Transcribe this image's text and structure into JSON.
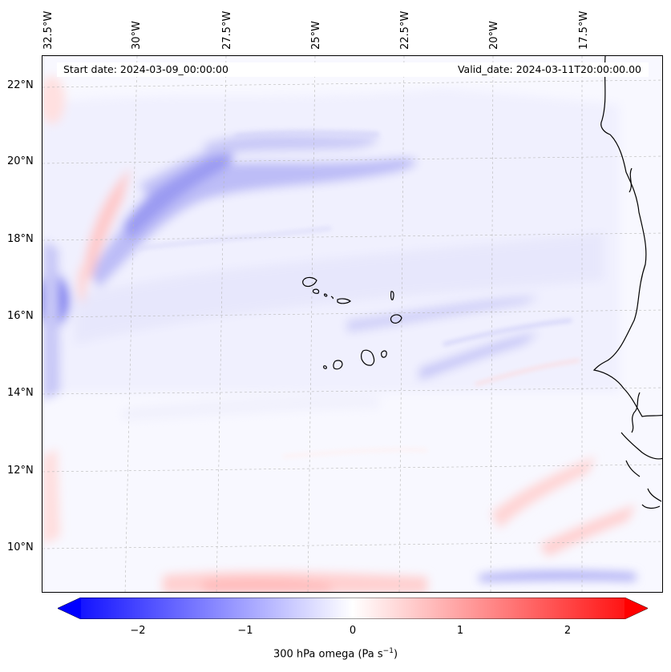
{
  "figure": {
    "start_date_label": "Start date: 2024-03-09_00:00:00",
    "valid_date_label": "Valid_date: 2024-03-11T20:00:00.00",
    "longitude_labels": [
      "32.5°W",
      "30°W",
      "27.5°W",
      "25°W",
      "22.5°W",
      "20°W",
      "17.5°W"
    ],
    "latitude_labels": [
      "22°N",
      "20°N",
      "18°N",
      "16°N",
      "14°N",
      "12°N",
      "10°N"
    ],
    "colorbar": {
      "ticks": [
        "−2",
        "−1",
        "0",
        "1",
        "2"
      ],
      "tick_values": [
        -2,
        -1,
        0,
        1,
        2
      ],
      "range": [
        -2.75,
        2.75
      ],
      "label": "300 hPa omega (Pa s",
      "label_sup": "−1",
      "label_end": ")",
      "colormap": "bwr",
      "low_color": "#0000ff",
      "mid_color": "#ffffff",
      "high_color": "#ff0000"
    }
  },
  "chart_data": {
    "type": "heatmap",
    "field": "300 hPa omega",
    "units": "Pa s−1",
    "lon_range": [
      "32.5°W",
      "16°W"
    ],
    "lat_range": [
      "9°N",
      "23°N"
    ],
    "start_date": "2024-03-09_00:00:00",
    "valid_date": "2024-03-11T20:00:00.00",
    "gridlines": true,
    "coastlines": true,
    "colorbar_ticks": [
      -2,
      -1,
      0,
      1,
      2
    ],
    "colorbar_extend": "both"
  }
}
